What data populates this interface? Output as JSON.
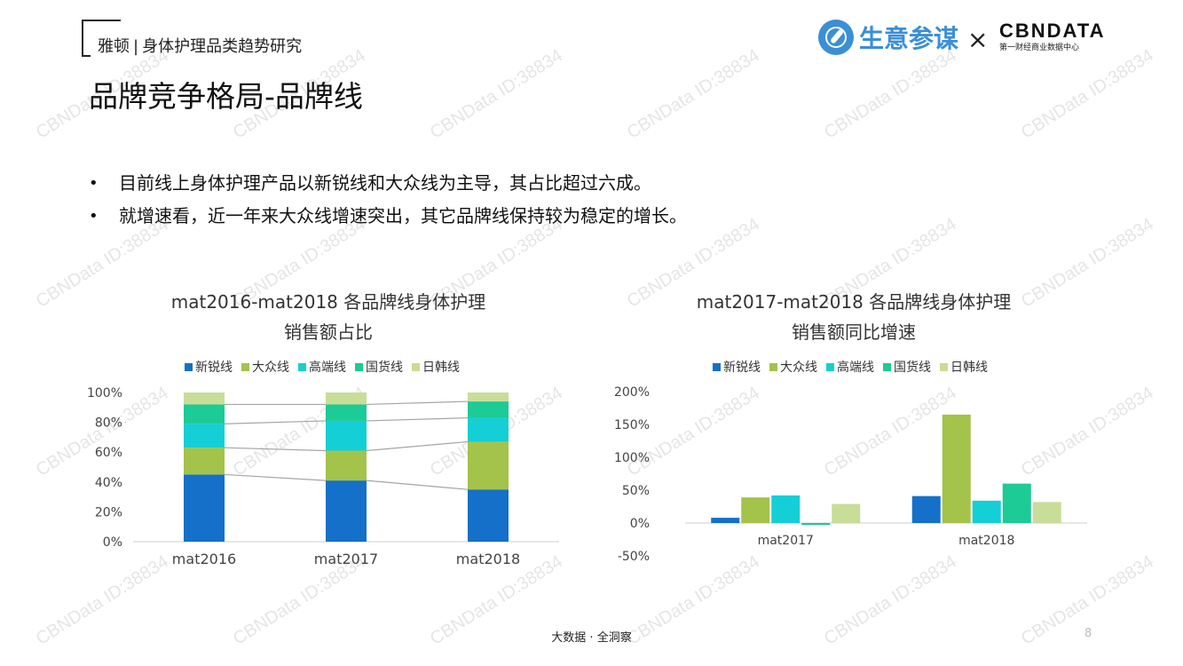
{
  "header": {
    "brand": "雅顿",
    "separator": "|",
    "report_name": "身体护理品类趋势研究"
  },
  "page_title": "品牌竞争格局-品牌线",
  "logos": {
    "partner_name": "生意参谋",
    "times": "×",
    "cbndata": "CBNDATA",
    "cbndata_sub": "第一财经商业数据中心"
  },
  "bullets": [
    {
      "marker": "•",
      "text": "目前线上身体护理产品以新锐线和大众线为主导，其占比超过六成。"
    },
    {
      "marker": "•",
      "text": "就增速看，近一年来大众线增速突出，其它品牌线保持较为稳定的增长。"
    }
  ],
  "colors": {
    "新锐线": "#1470c8",
    "大众线": "#a3c34a",
    "高端线": "#14cfd6",
    "国货线": "#1ccb95",
    "日韩线": "#c8dd98"
  },
  "chart_data": [
    {
      "type": "bar",
      "stacked": true,
      "title_line1": "mat2016-mat2018 各品牌线身体护理",
      "title_line2": "销售额占比",
      "categories": [
        "mat2016",
        "mat2017",
        "mat2018"
      ],
      "series": [
        {
          "name": "新锐线",
          "values": [
            45,
            41,
            35
          ]
        },
        {
          "name": "大众线",
          "values": [
            18,
            20,
            32
          ]
        },
        {
          "name": "高端线",
          "values": [
            16,
            20,
            16
          ]
        },
        {
          "name": "国货线",
          "values": [
            13,
            11,
            11
          ]
        },
        {
          "name": "日韩线",
          "values": [
            8,
            8,
            6
          ]
        }
      ],
      "ylim": [
        0,
        100
      ],
      "yticks": [
        "0%",
        "20%",
        "40%",
        "60%",
        "80%",
        "100%"
      ],
      "series_lines": true,
      "legend": "top"
    },
    {
      "type": "bar",
      "stacked": false,
      "title_line1": "mat2017-mat2018 各品牌线身体护理",
      "title_line2": "销售额同比增速",
      "categories": [
        "mat2017",
        "mat2018"
      ],
      "series": [
        {
          "name": "新锐线",
          "values": [
            8,
            41
          ]
        },
        {
          "name": "大众线",
          "values": [
            39,
            165
          ]
        },
        {
          "name": "高端线",
          "values": [
            42,
            34
          ]
        },
        {
          "name": "国货线",
          "values": [
            -3,
            60
          ]
        },
        {
          "name": "日韩线",
          "values": [
            29,
            32
          ]
        }
      ],
      "ylim": [
        -50,
        200
      ],
      "yticks": [
        "-50%",
        "0%",
        "50%",
        "100%",
        "150%",
        "200%"
      ],
      "legend": "top"
    }
  ],
  "watermark": "CBNData ID:38834",
  "footer": "大数据 · 全洞察",
  "page_number": "8"
}
